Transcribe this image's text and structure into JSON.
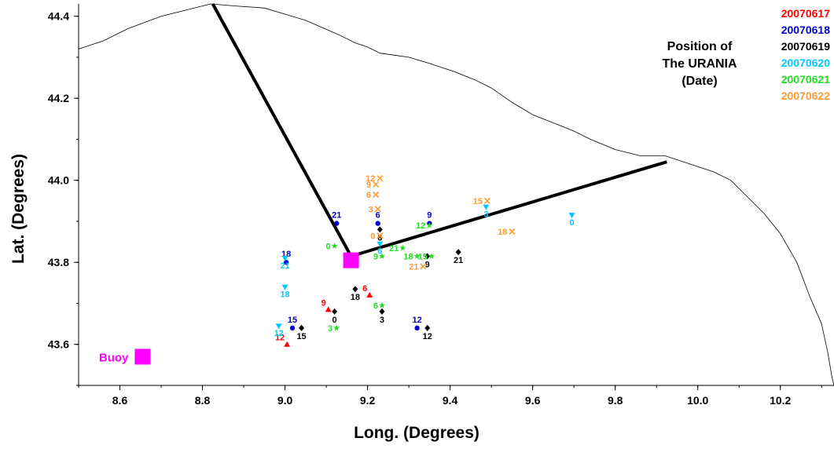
{
  "chart_data": {
    "type": "scatter",
    "xlabel": "Long. (Degrees)",
    "ylabel": "Lat. (Degrees)",
    "xlim": [
      8.5,
      10.33
    ],
    "ylim": [
      43.5,
      44.43
    ],
    "xticks": [
      8.6,
      8.8,
      9.0,
      9.2,
      9.4,
      9.6,
      9.8,
      10.0,
      10.2
    ],
    "yticks": [
      43.6,
      43.8,
      44.0,
      44.2,
      44.4
    ],
    "xtick_labels": [
      "8.6",
      "8.8",
      "9.0",
      "9.2",
      "9.4",
      "9.6",
      "9.8",
      "10.0",
      "10.2"
    ],
    "ytick_labels": [
      "43.6",
      "43.8",
      "44.0",
      "44.2",
      "44.4"
    ],
    "grid": false,
    "legend": {
      "title_lines": [
        "Position of",
        "The URANIA",
        "(Date)"
      ],
      "placement": "top-right"
    },
    "series": [
      {
        "name": "20070617",
        "color": "#ff0000",
        "marker": "triangle-up",
        "points": [
          {
            "x": 9.005,
            "y": 43.6,
            "label": "12"
          },
          {
            "x": 9.105,
            "y": 43.685,
            "label": "9"
          },
          {
            "x": 9.205,
            "y": 43.72,
            "label": "6"
          }
        ]
      },
      {
        "name": "20070618",
        "color": "#0000cc",
        "marker": "circle",
        "points": [
          {
            "x": 9.018,
            "y": 43.64,
            "label": "15"
          },
          {
            "x": 9.125,
            "y": 43.895,
            "label": "21"
          },
          {
            "x": 9.225,
            "y": 43.895,
            "label": "6"
          },
          {
            "x": 9.35,
            "y": 43.895,
            "label": "9"
          },
          {
            "x": 9.32,
            "y": 43.64,
            "label": "12"
          },
          {
            "x": 9.003,
            "y": 43.8,
            "label": "18"
          }
        ]
      },
      {
        "name": "20070619",
        "color": "#000000",
        "marker": "diamond",
        "points": [
          {
            "x": 9.04,
            "y": 43.64,
            "label": "15"
          },
          {
            "x": 9.12,
            "y": 43.68,
            "label": "0"
          },
          {
            "x": 9.17,
            "y": 43.735,
            "label": "18"
          },
          {
            "x": 9.235,
            "y": 43.68,
            "label": "3"
          },
          {
            "x": 9.23,
            "y": 43.88,
            "label": "6"
          },
          {
            "x": 9.345,
            "y": 43.815,
            "label": "9"
          },
          {
            "x": 9.345,
            "y": 43.64,
            "label": "12"
          },
          {
            "x": 9.42,
            "y": 43.825,
            "label": "21"
          }
        ]
      },
      {
        "name": "20070620",
        "color": "#00c8ff",
        "marker": "triangle-down",
        "points": [
          {
            "x": 8.985,
            "y": 43.645,
            "label": "12"
          },
          {
            "x": 9.0,
            "y": 43.74,
            "label": "18"
          },
          {
            "x": 9.0,
            "y": 43.81,
            "label": "21"
          },
          {
            "x": 9.23,
            "y": 43.845,
            "label": "6"
          },
          {
            "x": 9.487,
            "y": 43.935,
            "label": "3"
          },
          {
            "x": 9.695,
            "y": 43.915,
            "label": "0"
          }
        ]
      },
      {
        "name": "20070621",
        "color": "#22dd22",
        "marker": "star",
        "points": [
          {
            "x": 9.12,
            "y": 43.84,
            "label": "0"
          },
          {
            "x": 9.125,
            "y": 43.64,
            "label": "3"
          },
          {
            "x": 9.235,
            "y": 43.695,
            "label": "6"
          },
          {
            "x": 9.235,
            "y": 43.815,
            "label": "9"
          },
          {
            "x": 9.35,
            "y": 43.89,
            "label": "12"
          },
          {
            "x": 9.355,
            "y": 43.815,
            "label": "15"
          },
          {
            "x": 9.32,
            "y": 43.815,
            "label": "18"
          },
          {
            "x": 9.285,
            "y": 43.835,
            "label": "21"
          }
        ]
      },
      {
        "name": "20070622",
        "color": "#ff9933",
        "marker": "x",
        "points": [
          {
            "x": 9.23,
            "y": 43.865,
            "label": "0"
          },
          {
            "x": 9.225,
            "y": 43.93,
            "label": "3"
          },
          {
            "x": 9.22,
            "y": 43.965,
            "label": "6"
          },
          {
            "x": 9.22,
            "y": 43.99,
            "label": "9"
          },
          {
            "x": 9.23,
            "y": 44.005,
            "label": "12"
          },
          {
            "x": 9.49,
            "y": 43.95,
            "label": "15"
          },
          {
            "x": 9.55,
            "y": 43.875,
            "label": "18"
          },
          {
            "x": 9.335,
            "y": 43.79,
            "label": "21"
          }
        ]
      }
    ],
    "transect": [
      {
        "x": 8.825,
        "y": 44.43
      },
      {
        "x": 9.16,
        "y": 43.815
      },
      {
        "x": 9.925,
        "y": 44.045
      }
    ],
    "markers": [
      {
        "name": "Buoy",
        "x": 8.655,
        "y": 43.57,
        "color": "#ff00ff",
        "shape": "square"
      },
      {
        "x": 9.16,
        "y": 43.805,
        "color": "#ff00ff",
        "shape": "square"
      }
    ],
    "coastline": [
      [
        8.82,
        44.43
      ],
      [
        8.7,
        44.4
      ],
      [
        8.62,
        44.37
      ],
      [
        8.56,
        44.34
      ],
      [
        8.5,
        44.32
      ]
    ],
    "coastline_main": [
      [
        8.82,
        44.43
      ],
      [
        8.88,
        44.425
      ],
      [
        8.95,
        44.42
      ],
      [
        9.05,
        44.39
      ],
      [
        9.13,
        44.355
      ],
      [
        9.17,
        44.335
      ],
      [
        9.2,
        44.325
      ],
      [
        9.23,
        44.31
      ],
      [
        9.3,
        44.3
      ],
      [
        9.35,
        44.285
      ],
      [
        9.41,
        44.265
      ],
      [
        9.46,
        44.245
      ],
      [
        9.5,
        44.225
      ],
      [
        9.55,
        44.19
      ],
      [
        9.6,
        44.16
      ],
      [
        9.65,
        44.14
      ],
      [
        9.7,
        44.12
      ],
      [
        9.74,
        44.1
      ],
      [
        9.8,
        44.075
      ],
      [
        9.86,
        44.06
      ],
      [
        9.92,
        44.06
      ],
      [
        9.98,
        44.04
      ],
      [
        10.04,
        44.02
      ],
      [
        10.08,
        44.0
      ],
      [
        10.12,
        43.96
      ],
      [
        10.16,
        43.92
      ],
      [
        10.2,
        43.87
      ],
      [
        10.24,
        43.8
      ],
      [
        10.27,
        43.72
      ],
      [
        10.3,
        43.65
      ],
      [
        10.315,
        43.58
      ],
      [
        10.325,
        43.52
      ],
      [
        10.33,
        43.5
      ]
    ]
  }
}
